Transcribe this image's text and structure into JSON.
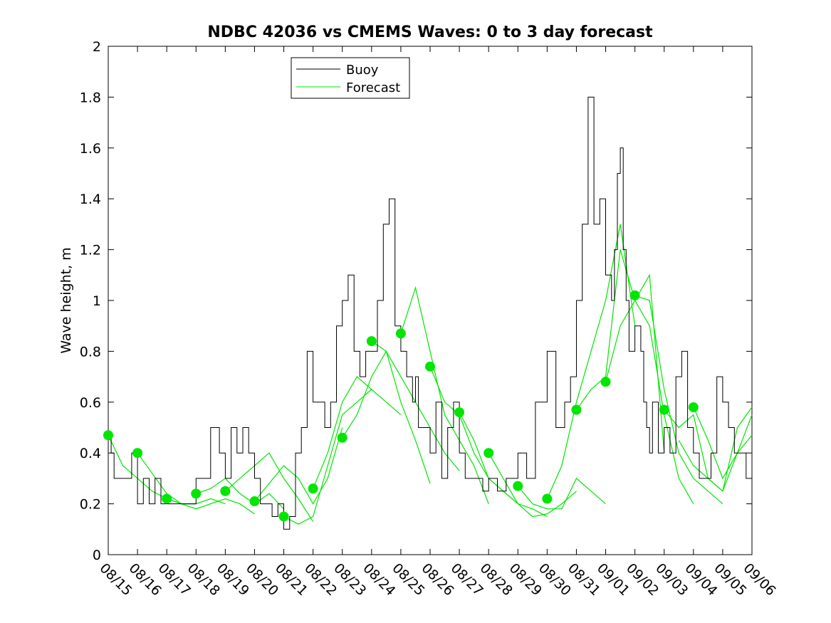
{
  "chart_data": {
    "type": "line",
    "title": "NDBC 42036 vs CMEMS Waves: 0 to 3 day forecast",
    "ylabel": "Wave height, m",
    "xlabel": "",
    "ylim": [
      0,
      2
    ],
    "yticks": [
      0,
      0.2,
      0.4,
      0.6,
      0.8,
      1,
      1.2,
      1.4,
      1.6,
      1.8,
      2
    ],
    "ytick_labels": [
      "0",
      "0.2",
      "0.4",
      "0.6",
      "0.8",
      "1",
      "1.2",
      "1.4",
      "1.6",
      "1.8",
      "2"
    ],
    "xlim_days": [
      0,
      22
    ],
    "xtick_labels": [
      "08/15",
      "08/16",
      "08/17",
      "08/18",
      "08/19",
      "08/20",
      "08/21",
      "08/22",
      "08/23",
      "08/24",
      "08/25",
      "08/26",
      "08/27",
      "08/28",
      "08/29",
      "08/30",
      "08/31",
      "09/01",
      "09/02",
      "09/03",
      "09/04",
      "09/05",
      "09/06"
    ],
    "legend": {
      "placement": "top-left",
      "entries": [
        {
          "label": "Buoy",
          "color": "#000000"
        },
        {
          "label": "Forecast",
          "color": "#00e600"
        }
      ]
    },
    "colors": {
      "buoy": "#000000",
      "forecast": "#00e600",
      "marker": "#00e600"
    },
    "buoy": {
      "name": "Buoy",
      "x": [
        0,
        0.1,
        0.2,
        0.3,
        0.5,
        0.8,
        1.0,
        1.2,
        1.4,
        1.6,
        1.8,
        2.0,
        2.2,
        2.5,
        3.0,
        3.5,
        3.8,
        4.0,
        4.2,
        4.4,
        4.6,
        4.8,
        5.0,
        5.2,
        5.4,
        5.6,
        5.8,
        6.0,
        6.2,
        6.4,
        6.6,
        6.8,
        7.0,
        7.2,
        7.4,
        7.6,
        7.8,
        8.0,
        8.2,
        8.4,
        8.6,
        8.8,
        9.0,
        9.2,
        9.4,
        9.6,
        9.8,
        10.0,
        10.2,
        10.4,
        10.5,
        10.6,
        10.8,
        11.0,
        11.2,
        11.4,
        11.6,
        11.8,
        12.0,
        12.2,
        12.5,
        12.8,
        13.0,
        13.3,
        13.6,
        14.0,
        14.3,
        14.6,
        15.0,
        15.3,
        15.6,
        15.8,
        16.0,
        16.2,
        16.4,
        16.6,
        16.8,
        17.0,
        17.2,
        17.3,
        17.4,
        17.5,
        17.6,
        17.7,
        17.8,
        18.0,
        18.2,
        18.3,
        18.4,
        18.5,
        18.6,
        18.8,
        19.0,
        19.2,
        19.4,
        19.6,
        19.8,
        20.0,
        20.2,
        20.4,
        20.6,
        20.8,
        21.0,
        21.2,
        21.4,
        21.6,
        21.8,
        22.0
      ],
      "values": [
        0.47,
        0.4,
        0.3,
        0.3,
        0.3,
        0.4,
        0.2,
        0.3,
        0.2,
        0.3,
        0.2,
        0.2,
        0.2,
        0.2,
        0.3,
        0.5,
        0.4,
        0.3,
        0.5,
        0.4,
        0.5,
        0.4,
        0.3,
        0.2,
        0.2,
        0.15,
        0.2,
        0.1,
        0.15,
        0.4,
        0.5,
        0.8,
        0.6,
        0.6,
        0.5,
        0.6,
        0.9,
        1.0,
        1.1,
        0.8,
        0.7,
        0.8,
        0.8,
        1.0,
        1.3,
        1.4,
        0.9,
        0.8,
        0.7,
        0.6,
        0.7,
        0.5,
        0.5,
        0.4,
        0.6,
        0.3,
        0.5,
        0.6,
        0.4,
        0.3,
        0.3,
        0.25,
        0.3,
        0.25,
        0.3,
        0.4,
        0.3,
        0.6,
        0.8,
        0.5,
        0.6,
        0.7,
        1.0,
        1.3,
        1.8,
        1.3,
        1.4,
        1.1,
        1.0,
        1.2,
        1.5,
        1.6,
        1.2,
        1.0,
        0.8,
        0.9,
        0.8,
        0.6,
        0.5,
        0.4,
        0.6,
        0.4,
        0.5,
        0.4,
        0.7,
        0.8,
        0.5,
        0.4,
        0.3,
        0.3,
        0.4,
        0.7,
        0.6,
        0.5,
        0.4,
        0.4,
        0.3,
        0.4
      ]
    },
    "forecasts": [
      {
        "name": "Forecast",
        "x": [
          0,
          0.5,
          1,
          1.5,
          2,
          2.5,
          3
        ],
        "values": [
          0.47,
          0.35,
          0.3,
          0.25,
          0.22,
          0.2,
          0.2
        ]
      },
      {
        "name": "Forecast",
        "x": [
          1,
          1.5,
          2,
          2.5,
          3,
          3.5,
          4
        ],
        "values": [
          0.4,
          0.32,
          0.24,
          0.2,
          0.2,
          0.22,
          0.2
        ]
      },
      {
        "name": "Forecast",
        "x": [
          2,
          2.5,
          3,
          3.5,
          4,
          4.5,
          5
        ],
        "values": [
          0.22,
          0.2,
          0.18,
          0.2,
          0.22,
          0.2,
          0.16
        ]
      },
      {
        "name": "Forecast",
        "x": [
          3,
          3.5,
          4,
          4.5,
          5,
          5.5,
          6
        ],
        "values": [
          0.24,
          0.26,
          0.3,
          0.24,
          0.2,
          0.24,
          0.18
        ]
      },
      {
        "name": "Forecast",
        "x": [
          4,
          4.5,
          5,
          5.5,
          6,
          6.5,
          7
        ],
        "values": [
          0.25,
          0.3,
          0.35,
          0.4,
          0.3,
          0.22,
          0.13
        ]
      },
      {
        "name": "Forecast",
        "x": [
          5,
          5.5,
          6,
          6.5,
          7,
          7.5,
          8
        ],
        "values": [
          0.21,
          0.28,
          0.35,
          0.3,
          0.2,
          0.3,
          0.5
        ]
      },
      {
        "name": "Forecast",
        "x": [
          6,
          6.5,
          7,
          7.5,
          8,
          8.5,
          9
        ],
        "values": [
          0.15,
          0.12,
          0.15,
          0.35,
          0.55,
          0.6,
          0.65
        ]
      },
      {
        "name": "Forecast",
        "x": [
          7,
          7.5,
          8,
          8.5,
          9,
          9.5,
          10
        ],
        "values": [
          0.26,
          0.4,
          0.6,
          0.7,
          0.65,
          0.6,
          0.55
        ]
      },
      {
        "name": "Forecast",
        "x": [
          8,
          8.5,
          9,
          9.5,
          10,
          10.5,
          11
        ],
        "values": [
          0.46,
          0.55,
          0.7,
          0.8,
          0.6,
          0.45,
          0.28
        ]
      },
      {
        "name": "Forecast",
        "x": [
          9,
          9.5,
          10,
          10.5,
          11,
          11.5,
          12
        ],
        "values": [
          0.84,
          0.8,
          0.7,
          0.6,
          0.5,
          0.4,
          0.33
        ]
      },
      {
        "name": "Forecast",
        "x": [
          10,
          10.5,
          11,
          11.5,
          12,
          12.5,
          13
        ],
        "values": [
          0.87,
          1.05,
          0.8,
          0.55,
          0.45,
          0.35,
          0.2
        ]
      },
      {
        "name": "Forecast",
        "x": [
          11,
          11.5,
          12,
          12.5,
          13,
          13.5,
          14
        ],
        "values": [
          0.74,
          0.6,
          0.55,
          0.4,
          0.3,
          0.25,
          0.2
        ]
      },
      {
        "name": "Forecast",
        "x": [
          12,
          12.5,
          13,
          13.5,
          14,
          14.5,
          15
        ],
        "values": [
          0.56,
          0.45,
          0.3,
          0.25,
          0.2,
          0.18,
          0.15
        ]
      },
      {
        "name": "Forecast",
        "x": [
          13,
          13.5,
          14,
          14.5,
          15,
          15.5,
          16
        ],
        "values": [
          0.4,
          0.3,
          0.2,
          0.15,
          0.16,
          0.2,
          0.25
        ]
      },
      {
        "name": "Forecast",
        "x": [
          14,
          14.5,
          15,
          15.5,
          16,
          16.5,
          17
        ],
        "values": [
          0.27,
          0.2,
          0.18,
          0.18,
          0.3,
          0.25,
          0.2
        ]
      },
      {
        "name": "Forecast",
        "x": [
          15,
          15.5,
          16,
          16.5,
          17,
          17.5,
          18
        ],
        "values": [
          0.22,
          0.35,
          0.6,
          0.8,
          1.0,
          1.3,
          0.9
        ]
      },
      {
        "name": "Forecast",
        "x": [
          16,
          16.5,
          17,
          17.5,
          18,
          18.5,
          19
        ],
        "values": [
          0.57,
          0.65,
          0.7,
          1.2,
          1.0,
          1.1,
          0.4
        ]
      },
      {
        "name": "Forecast",
        "x": [
          17,
          17.5,
          18,
          18.5,
          19,
          19.5,
          20
        ],
        "values": [
          0.68,
          0.9,
          1.0,
          0.9,
          0.55,
          0.3,
          0.2
        ]
      },
      {
        "name": "Forecast",
        "x": [
          18,
          18.5,
          19,
          19.5,
          20,
          20.5,
          21
        ],
        "values": [
          1.02,
          1.0,
          0.65,
          0.4,
          0.3,
          0.25,
          0.2
        ]
      },
      {
        "name": "Forecast",
        "x": [
          19,
          19.5,
          20,
          20.5,
          21,
          21.5,
          22
        ],
        "values": [
          0.57,
          0.5,
          0.55,
          0.3,
          0.25,
          0.4,
          0.47
        ]
      },
      {
        "name": "Forecast",
        "x": [
          20,
          20.5,
          21,
          21.5,
          22
        ],
        "values": [
          0.58,
          0.45,
          0.3,
          0.4,
          0.55
        ]
      },
      {
        "name": "Forecast",
        "x": [
          19.5,
          20,
          20.5,
          21,
          21.5,
          22
        ],
        "values": [
          0.45,
          0.35,
          0.3,
          0.25,
          0.5,
          0.58
        ]
      }
    ],
    "analysis_points": {
      "x": [
        0,
        1,
        2,
        3,
        4,
        5,
        6,
        7,
        8,
        9,
        10,
        11,
        12,
        13,
        14,
        15,
        16,
        17,
        18,
        19,
        20
      ],
      "values": [
        0.47,
        0.4,
        0.22,
        0.24,
        0.25,
        0.21,
        0.15,
        0.26,
        0.46,
        0.84,
        0.87,
        0.74,
        0.56,
        0.4,
        0.27,
        0.22,
        0.57,
        0.68,
        1.02,
        0.57,
        0.58
      ]
    }
  }
}
